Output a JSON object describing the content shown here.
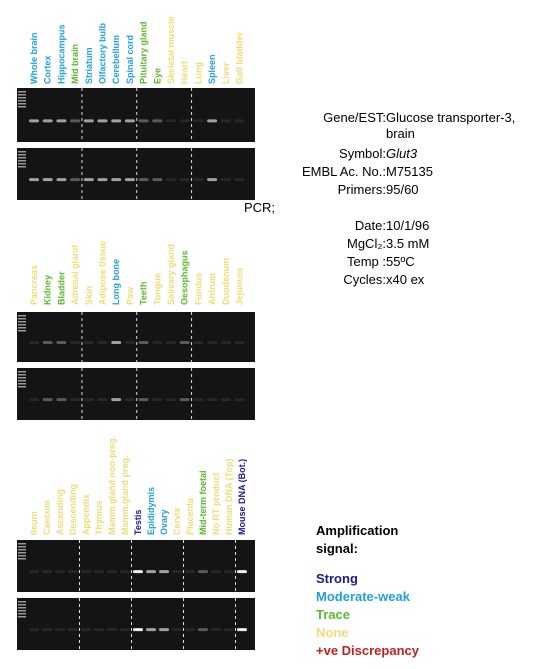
{
  "panels": [
    {
      "lanes": [
        {
          "label": "Whole brain",
          "color": "#22a0dc"
        },
        {
          "label": "Cortex",
          "color": "#22a0dc"
        },
        {
          "label": "Hippocampus",
          "color": "#22a0dc"
        },
        {
          "label": "Mid brain",
          "color": "#5cb82e"
        },
        {
          "label": "Striatum",
          "color": "#22a0dc"
        },
        {
          "label": "Olfactory bulb",
          "color": "#22a0dc"
        },
        {
          "label": "Cerebellum",
          "color": "#22a0dc"
        },
        {
          "label": "Spinal cord",
          "color": "#22a0dc"
        },
        {
          "label": "Pituitary gland",
          "color": "#5cb82e"
        },
        {
          "label": "Eye",
          "color": "#5cb82e"
        },
        {
          "label": "Skeletal muscle",
          "color": "#eedc78"
        },
        {
          "label": "Heart",
          "color": "#eedc78"
        },
        {
          "label": "Lung",
          "color": "#eedc78"
        },
        {
          "label": "Spleen",
          "color": "#22a0dc"
        },
        {
          "label": "Liver",
          "color": "#eedc78"
        },
        {
          "label": "Gall bladder",
          "color": "#eedc78"
        }
      ]
    },
    {
      "lanes": [
        {
          "label": "Pancreas",
          "color": "#eedc78"
        },
        {
          "label": "Kidney",
          "color": "#5cb82e"
        },
        {
          "label": "Bladder",
          "color": "#5cb82e"
        },
        {
          "label": "Adrenal gland",
          "color": "#eedc78"
        },
        {
          "label": "Skin",
          "color": "#eedc78"
        },
        {
          "label": "Adipose tissue",
          "color": "#eedc78"
        },
        {
          "label": "Long bone",
          "color": "#22a0dc"
        },
        {
          "label": "Paw",
          "color": "#eedc78"
        },
        {
          "label": "Teeth",
          "color": "#5cb82e"
        },
        {
          "label": "Tongue",
          "color": "#eedc78"
        },
        {
          "label": "Salivary gland",
          "color": "#eedc78"
        },
        {
          "label": "Oesophagus",
          "color": "#5cb82e"
        },
        {
          "label": "Fundus",
          "color": "#eedc78"
        },
        {
          "label": "Antrum",
          "color": "#eedc78"
        },
        {
          "label": "Duodenum",
          "color": "#eedc78"
        },
        {
          "label": "Jejunum",
          "color": "#eedc78"
        }
      ]
    },
    {
      "lanes": [
        {
          "label": "Ileum",
          "color": "#eedc78"
        },
        {
          "label": "Caecum",
          "color": "#eedc78"
        },
        {
          "label": "Ascending",
          "color": "#eedc78"
        },
        {
          "label": "Descending",
          "color": "#eedc78"
        },
        {
          "label": "Appendix",
          "color": "#eedc78"
        },
        {
          "label": "Thymus",
          "color": "#eedc78"
        },
        {
          "label": "Mamm.gland non-preg.",
          "color": "#eedc78"
        },
        {
          "label": "Mamm.gland preg.",
          "color": "#eedc78"
        },
        {
          "label": "Testis",
          "color": "#1a1a8c"
        },
        {
          "label": "Epididymis",
          "color": "#22a0dc"
        },
        {
          "label": "Ovary",
          "color": "#22a0dc"
        },
        {
          "label": "Cervix",
          "color": "#eedc78"
        },
        {
          "label": "Placenta",
          "color": "#eedc78"
        },
        {
          "label": "Mid-term foetal",
          "color": "#5cb82e"
        },
        {
          "label": "No RT product",
          "color": "#eedc78"
        },
        {
          "label": "Human DNA (Top)",
          "color": "#eedc78"
        },
        {
          "label": "Mouse DNA (Bot.)",
          "color": "#1a1a8c"
        }
      ]
    }
  ],
  "info": [
    {
      "label": "Gene/EST:",
      "value": "Glucose transporter-3, brain"
    },
    {
      "label": "Symbol:",
      "value": "Glut3"
    },
    {
      "label": "EMBL Ac. No.:",
      "value": "M75135"
    },
    {
      "label": "Primers:",
      "value": "95/60"
    },
    {
      "label": "PCR;"
    },
    {
      "label": "Date:",
      "value": "10/1/96"
    },
    {
      "label": "MgCl₂:",
      "value": "3.5 mM"
    },
    {
      "label": "Temp :",
      "value": "55ºC"
    },
    {
      "label": "Cycles:",
      "value": "x40 ex"
    }
  ],
  "legend": {
    "title": "Amplification signal:",
    "items": [
      {
        "label": "Strong",
        "color": "#1a1a8c"
      },
      {
        "label": "Moderate-weak",
        "color": "#22a0dc"
      },
      {
        "label": "Trace",
        "color": "#5cb82e"
      },
      {
        "label": "None",
        "color": "#eedc78"
      },
      {
        "label": "+ve Discrepancy",
        "color": "#c0201c"
      }
    ]
  }
}
